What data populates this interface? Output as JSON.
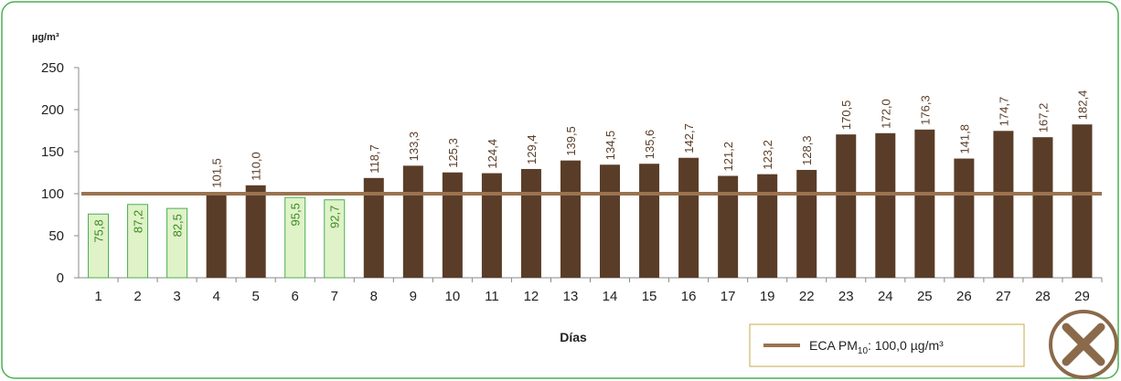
{
  "chart_data": {
    "type": "bar",
    "y_axis_label": "µg/m³",
    "x_axis_label": "Días",
    "categories": [
      "1",
      "2",
      "3",
      "4",
      "5",
      "6",
      "7",
      "8",
      "9",
      "10",
      "11",
      "12",
      "13",
      "14",
      "15",
      "16",
      "17",
      "19",
      "22",
      "23",
      "24",
      "25",
      "26",
      "27",
      "28",
      "29"
    ],
    "values": [
      75.8,
      87.2,
      82.5,
      101.5,
      110.0,
      95.5,
      92.7,
      118.7,
      133.3,
      125.3,
      124.4,
      129.4,
      139.5,
      134.5,
      135.6,
      142.7,
      121.2,
      123.2,
      128.3,
      170.5,
      172.0,
      176.3,
      141.8,
      174.7,
      167.2,
      182.4
    ],
    "value_labels": [
      "75,8",
      "87,2",
      "82,5",
      "101,5",
      "110,0",
      "95,5",
      "92,7",
      "118,7",
      "133,3",
      "125,3",
      "124,4",
      "129,4",
      "139,5",
      "134,5",
      "135,6",
      "142,7",
      "121,2",
      "123,2",
      "128,3",
      "170,5",
      "172,0",
      "176,3",
      "141,8",
      "174,7",
      "167,2",
      "182,4"
    ],
    "color_above": "#5a3d28",
    "color_below": "#dff2c8",
    "label_color_above": "#5a3d28",
    "label_color_below": "#3a8a1e",
    "reference_line": {
      "value": 100,
      "color": "#9b7350",
      "label_prefix": "ECA PM",
      "label_sub": "10",
      "label_suffix": ": 100,0  µg/m³"
    },
    "ylim": [
      0,
      250
    ],
    "yticks": [
      0,
      50,
      100,
      150,
      200,
      250
    ]
  }
}
